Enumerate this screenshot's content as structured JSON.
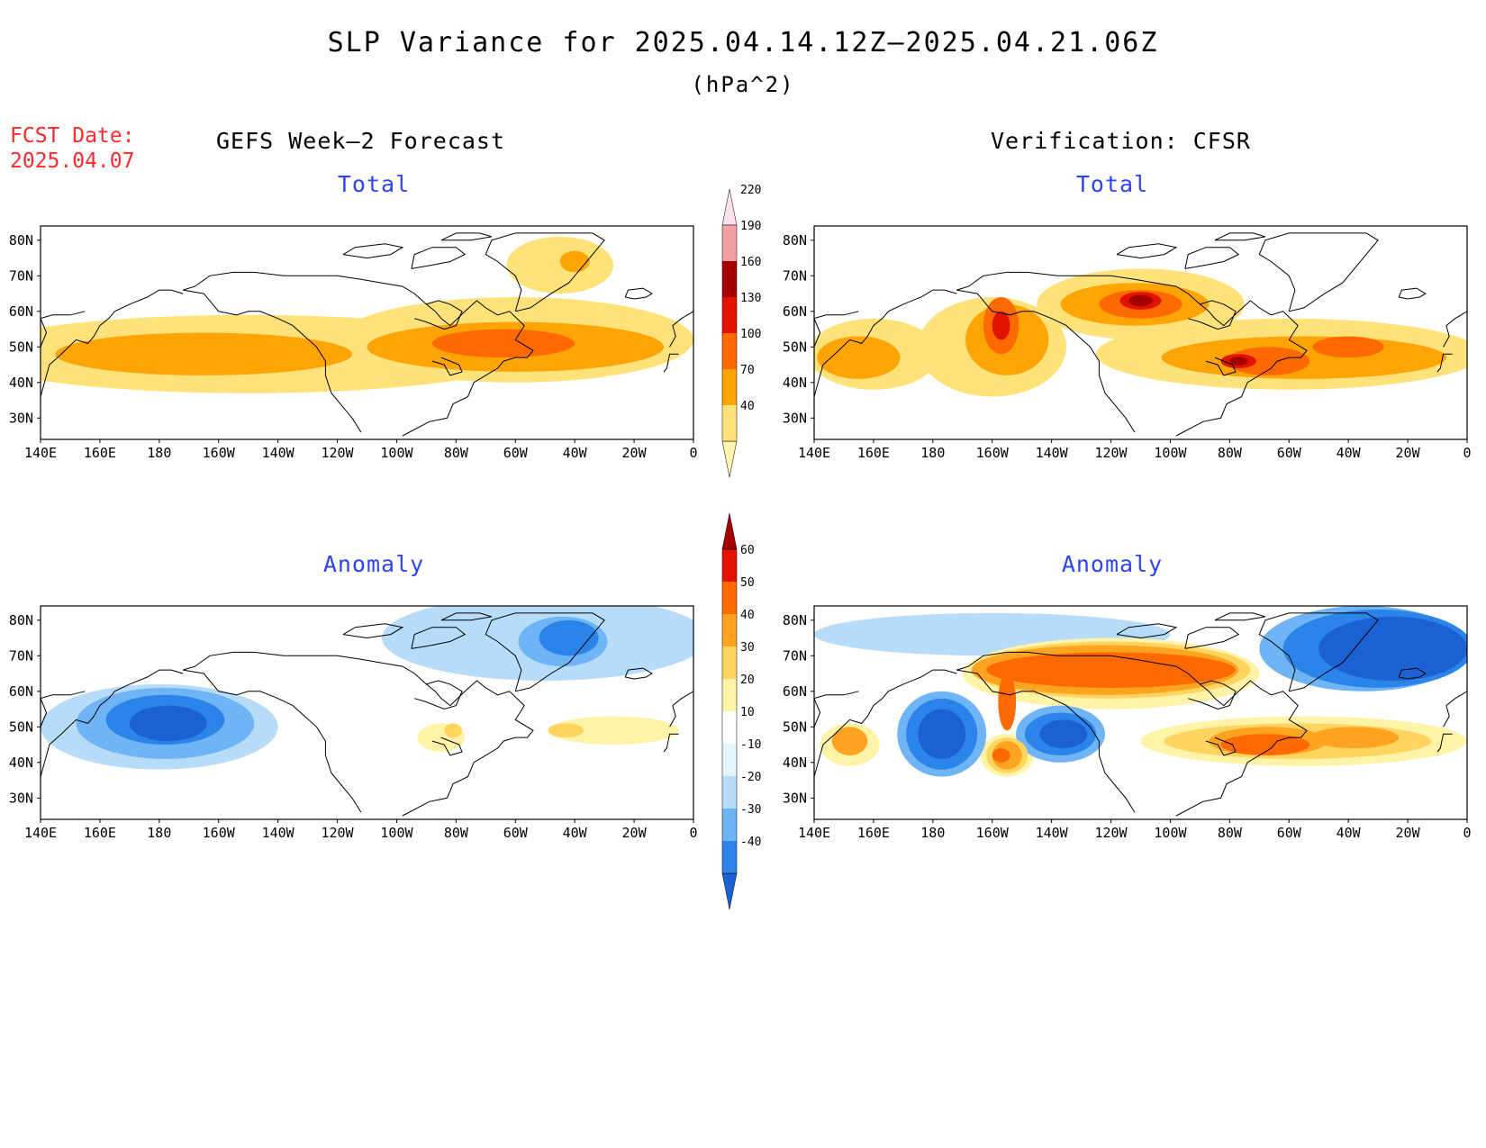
{
  "header": {
    "title": "SLP Variance for 2025.04.14.12Z–2025.04.21.06Z",
    "units": "(hPa^2)",
    "fcst_label": "FCST Date:",
    "fcst_date": "2025.04.07"
  },
  "columns": {
    "left": "GEFS Week–2 Forecast",
    "right": "Verification: CFSR"
  },
  "panel_titles": {
    "total": "Total",
    "anomaly": "Anomaly"
  },
  "axes": {
    "lon_labels": [
      "140E",
      "160E",
      "180",
      "160W",
      "140W",
      "120W",
      "100W",
      "80W",
      "60W",
      "40W",
      "20W",
      "0"
    ],
    "lat_labels": [
      "80N",
      "70N",
      "60N",
      "50N",
      "40N",
      "30N"
    ],
    "lon_range": [
      140,
      360
    ],
    "lat_range": [
      24,
      84
    ]
  },
  "colorbars": {
    "total": {
      "labels": [
        "40",
        "70",
        "100",
        "130",
        "160",
        "190",
        "220"
      ],
      "colors": [
        "#fff3b0",
        "#ffe37a",
        "#ffa405",
        "#ff6a00",
        "#e11300",
        "#a50000",
        "#f2a0a4",
        "#fde0e8"
      ]
    },
    "anomaly": {
      "labels": [
        "-40",
        "-30",
        "-20",
        "-10",
        "10",
        "20",
        "30",
        "40",
        "50",
        "60"
      ],
      "colors": [
        "#1b61d3",
        "#2a84ea",
        "#6fb4f5",
        "#b7dcfa",
        "#e3f4fd",
        "#ffffff",
        "#fff3a8",
        "#ffd560",
        "#ffa420",
        "#ff6a00",
        "#e11300",
        "#a50000"
      ]
    }
  },
  "map_data": {
    "gefs_total": [
      {
        "level": 1,
        "lon": 210,
        "lat": 48,
        "rx": 95,
        "ry": 11,
        "rot": 0
      },
      {
        "level": 1,
        "lon": 300,
        "lat": 52,
        "rx": 60,
        "ry": 12,
        "rot": 0
      },
      {
        "level": 1,
        "lon": 315,
        "lat": 73,
        "rx": 18,
        "ry": 8,
        "rot": 0
      },
      {
        "level": 2,
        "lon": 195,
        "lat": 48,
        "rx": 50,
        "ry": 6,
        "rot": 0
      },
      {
        "level": 2,
        "lon": 300,
        "lat": 50,
        "rx": 50,
        "ry": 7,
        "rot": 0
      },
      {
        "level": 2,
        "lon": 320,
        "lat": 74,
        "rx": 5,
        "ry": 3,
        "rot": 0
      },
      {
        "level": 3,
        "lon": 296,
        "lat": 51,
        "rx": 24,
        "ry": 4,
        "rot": 0
      }
    ],
    "cfsr_total": [
      {
        "level": 1,
        "lon": 160,
        "lat": 48,
        "rx": 22,
        "ry": 10,
        "rot": 0
      },
      {
        "level": 1,
        "lon": 200,
        "lat": 50,
        "rx": 25,
        "ry": 14,
        "rot": 0
      },
      {
        "level": 1,
        "lon": 250,
        "lat": 62,
        "rx": 35,
        "ry": 10,
        "rot": 0
      },
      {
        "level": 1,
        "lon": 300,
        "lat": 48,
        "rx": 65,
        "ry": 10,
        "rot": 0
      },
      {
        "level": 2,
        "lon": 155,
        "lat": 47,
        "rx": 14,
        "ry": 6,
        "rot": 0
      },
      {
        "level": 2,
        "lon": 205,
        "lat": 52,
        "rx": 14,
        "ry": 10,
        "rot": 0
      },
      {
        "level": 2,
        "lon": 248,
        "lat": 62,
        "rx": 25,
        "ry": 6,
        "rot": 0
      },
      {
        "level": 2,
        "lon": 305,
        "lat": 47,
        "rx": 48,
        "ry": 6,
        "rot": 0
      },
      {
        "level": 3,
        "lon": 203,
        "lat": 56,
        "rx": 6,
        "ry": 8,
        "rot": 0
      },
      {
        "level": 3,
        "lon": 250,
        "lat": 62,
        "rx": 14,
        "ry": 4,
        "rot": 0
      },
      {
        "level": 3,
        "lon": 293,
        "lat": 46,
        "rx": 14,
        "ry": 4,
        "rot": 0
      },
      {
        "level": 3,
        "lon": 320,
        "lat": 50,
        "rx": 12,
        "ry": 3,
        "rot": 0
      },
      {
        "level": 4,
        "lon": 203,
        "lat": 56,
        "rx": 3,
        "ry": 4,
        "rot": 0
      },
      {
        "level": 4,
        "lon": 250,
        "lat": 63,
        "rx": 7,
        "ry": 2.5,
        "rot": 0
      },
      {
        "level": 4,
        "lon": 283,
        "lat": 46,
        "rx": 6,
        "ry": 2,
        "rot": 0
      },
      {
        "level": 5,
        "lon": 250,
        "lat": 63,
        "rx": 4,
        "ry": 1.6,
        "rot": 0
      },
      {
        "level": 5,
        "lon": 283,
        "lat": 46,
        "rx": 3,
        "ry": 1.2,
        "rot": 0
      }
    ],
    "gefs_anomaly": [
      {
        "level": -1,
        "lon": 310,
        "lat": 75,
        "rx": 55,
        "ry": 12,
        "rot": 0
      },
      {
        "level": -1,
        "lon": 180,
        "lat": 50,
        "rx": 40,
        "ry": 12,
        "rot": 0
      },
      {
        "level": -2,
        "lon": 182,
        "lat": 51,
        "rx": 30,
        "ry": 10,
        "rot": 0
      },
      {
        "level": -2,
        "lon": 316,
        "lat": 74,
        "rx": 15,
        "ry": 7,
        "rot": 0
      },
      {
        "level": -3,
        "lon": 182,
        "lat": 52,
        "rx": 20,
        "ry": 7,
        "rot": 0
      },
      {
        "level": -3,
        "lon": 318,
        "lat": 75,
        "rx": 10,
        "ry": 5,
        "rot": 0
      },
      {
        "level": -4,
        "lon": 183,
        "lat": 51,
        "rx": 13,
        "ry": 5,
        "rot": 0
      },
      {
        "level": 1,
        "lon": 333,
        "lat": 49,
        "rx": 22,
        "ry": 4,
        "rot": 0
      },
      {
        "level": 1,
        "lon": 275,
        "lat": 47,
        "rx": 8,
        "ry": 4,
        "rot": 0
      },
      {
        "level": 2,
        "lon": 317,
        "lat": 49,
        "rx": 6,
        "ry": 2,
        "rot": 0
      },
      {
        "level": 2,
        "lon": 279,
        "lat": 49,
        "rx": 3,
        "ry": 2,
        "rot": 0
      }
    ],
    "cfsr_anomaly": [
      {
        "level": -1,
        "lon": 200,
        "lat": 76,
        "rx": 60,
        "ry": 6,
        "rot": 0
      },
      {
        "level": -2,
        "lon": 325,
        "lat": 72,
        "rx": 35,
        "ry": 12,
        "rot": 0
      },
      {
        "level": -2,
        "lon": 183,
        "lat": 48,
        "rx": 15,
        "ry": 12,
        "rot": 0
      },
      {
        "level": -2,
        "lon": 223,
        "lat": 48,
        "rx": 15,
        "ry": 8,
        "rot": 0
      },
      {
        "level": -3,
        "lon": 330,
        "lat": 72,
        "rx": 32,
        "ry": 11,
        "rot": 0
      },
      {
        "level": -3,
        "lon": 183,
        "lat": 48,
        "rx": 12,
        "ry": 10,
        "rot": 0
      },
      {
        "level": -3,
        "lon": 223,
        "lat": 48,
        "rx": 12,
        "ry": 6,
        "rot": 0
      },
      {
        "level": -4,
        "lon": 335,
        "lat": 72,
        "rx": 25,
        "ry": 9,
        "rot": 0
      },
      {
        "level": -4,
        "lon": 183,
        "lat": 48,
        "rx": 8,
        "ry": 7,
        "rot": 0
      },
      {
        "level": -4,
        "lon": 224,
        "lat": 48,
        "rx": 8,
        "ry": 4,
        "rot": 0
      },
      {
        "level": 1,
        "lon": 240,
        "lat": 65,
        "rx": 50,
        "ry": 10,
        "rot": 0
      },
      {
        "level": 1,
        "lon": 305,
        "lat": 46,
        "rx": 55,
        "ry": 7,
        "rot": 0
      },
      {
        "level": 1,
        "lon": 152,
        "lat": 45,
        "rx": 10,
        "ry": 6,
        "rot": 0
      },
      {
        "level": 1,
        "lon": 205,
        "lat": 42,
        "rx": 9,
        "ry": 6,
        "rot": 0
      },
      {
        "level": 2,
        "lon": 240,
        "lat": 66,
        "rx": 47,
        "ry": 8,
        "rot": 0
      },
      {
        "level": 2,
        "lon": 303,
        "lat": 46,
        "rx": 45,
        "ry": 5,
        "rot": 0
      },
      {
        "level": 2,
        "lon": 205,
        "lat": 42,
        "rx": 7,
        "ry": 5,
        "rot": 0
      },
      {
        "level": 3,
        "lon": 238,
        "lat": 66,
        "rx": 45,
        "ry": 7,
        "rot": 0
      },
      {
        "level": 3,
        "lon": 293,
        "lat": 46,
        "rx": 20,
        "ry": 4,
        "rot": 0
      },
      {
        "level": 3,
        "lon": 322,
        "lat": 47,
        "rx": 15,
        "ry": 3,
        "rot": 0
      },
      {
        "level": 3,
        "lon": 152,
        "lat": 46,
        "rx": 6,
        "ry": 4,
        "rot": 0
      },
      {
        "level": 3,
        "lon": 205,
        "lat": 42,
        "rx": 5,
        "ry": 4,
        "rot": 0
      },
      {
        "level": 4,
        "lon": 240,
        "lat": 66,
        "rx": 42,
        "ry": 5,
        "rot": 0
      },
      {
        "level": 4,
        "lon": 292,
        "lat": 45,
        "rx": 15,
        "ry": 3,
        "rot": 0
      },
      {
        "level": 4,
        "lon": 205,
        "lat": 57,
        "rx": 3,
        "ry": 8,
        "rot": 0
      },
      {
        "level": 4,
        "lon": 203,
        "lat": 42,
        "rx": 3,
        "ry": 2,
        "rot": 0
      }
    ]
  }
}
